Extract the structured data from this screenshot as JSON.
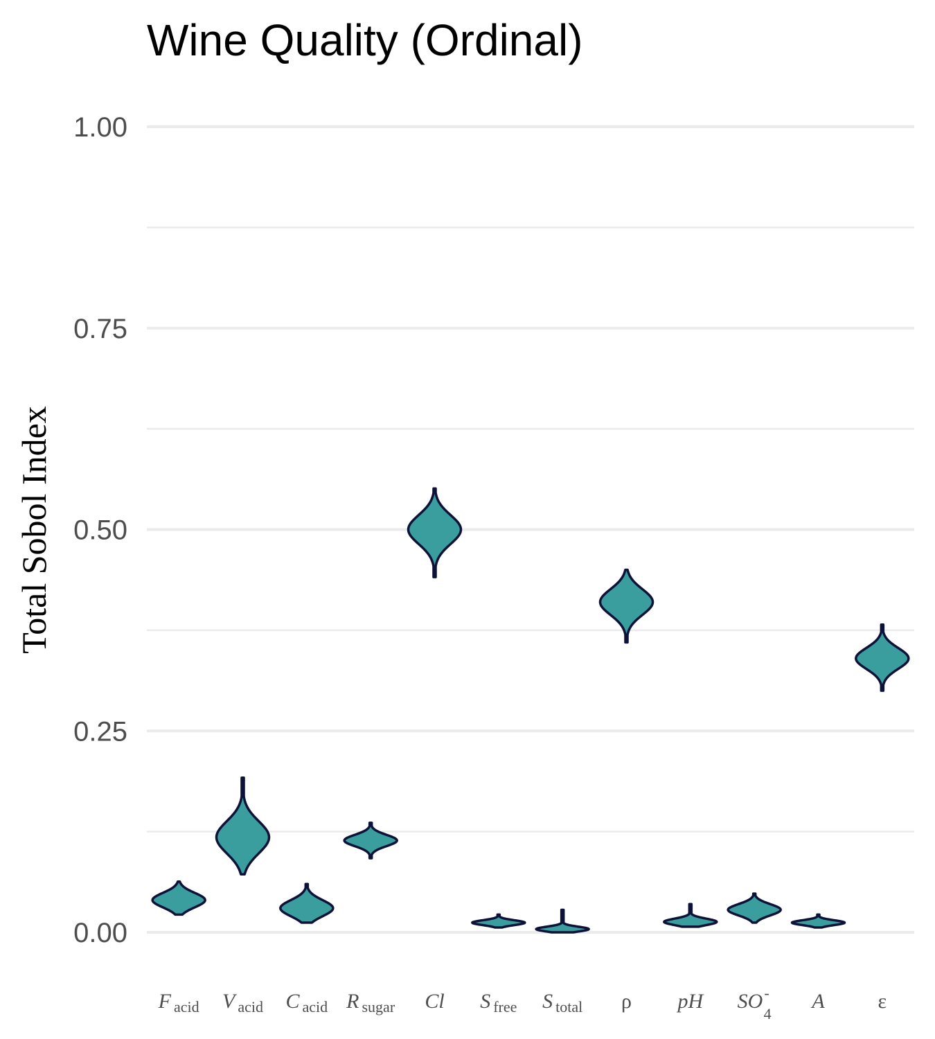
{
  "chart_data": {
    "type": "violin",
    "title": "Wine Quality (Ordinal)",
    "xlabel": "",
    "ylabel": "Total Sobol Index",
    "ylim": [
      -0.05,
      1.05
    ],
    "yticks": [
      {
        "value": 0.0,
        "label": "0.00"
      },
      {
        "value": 0.25,
        "label": "0.25"
      },
      {
        "value": 0.5,
        "label": "0.50"
      },
      {
        "value": 0.75,
        "label": "0.75"
      },
      {
        "value": 1.0,
        "label": "1.00"
      }
    ],
    "grid": true,
    "fill_color": "#3a9e9e",
    "outline_color": "#0d1238",
    "categories": [
      {
        "base": "F",
        "sub": "acid",
        "supsub": "",
        "italic": true,
        "median": 0.04,
        "min": 0.022,
        "max": 0.063,
        "spread": 0.009
      },
      {
        "base": "V",
        "sub": "acid",
        "supsub": "",
        "italic": true,
        "median": 0.118,
        "min": 0.072,
        "max": 0.192,
        "spread": 0.02
      },
      {
        "base": "C",
        "sub": "acid",
        "supsub": "",
        "italic": true,
        "median": 0.03,
        "min": 0.012,
        "max": 0.06,
        "spread": 0.01
      },
      {
        "base": "R",
        "sub": "sugar",
        "supsub": "",
        "italic": true,
        "median": 0.114,
        "min": 0.092,
        "max": 0.136,
        "spread": 0.007
      },
      {
        "base": "Cl",
        "sub": "",
        "supsub": "",
        "italic": true,
        "median": 0.5,
        "min": 0.441,
        "max": 0.551,
        "spread": 0.018
      },
      {
        "base": "S",
        "sub": "free",
        "supsub": "",
        "italic": true,
        "median": 0.012,
        "min": 0.006,
        "max": 0.022,
        "spread": 0.003
      },
      {
        "base": "S",
        "sub": "total",
        "supsub": "",
        "italic": true,
        "median": 0.004,
        "min": 0.0,
        "max": 0.028,
        "spread": 0.003
      },
      {
        "base": "ρ",
        "sub": "",
        "supsub": "",
        "italic": false,
        "median": 0.41,
        "min": 0.36,
        "max": 0.45,
        "spread": 0.016
      },
      {
        "base": "pH",
        "sub": "",
        "supsub": "",
        "italic": true,
        "median": 0.013,
        "min": 0.007,
        "max": 0.035,
        "spread": 0.004
      },
      {
        "base": "SO",
        "sub": "4",
        "supsub": "-",
        "italic": true,
        "median": 0.028,
        "min": 0.012,
        "max": 0.048,
        "spread": 0.007
      },
      {
        "base": "A",
        "sub": "",
        "supsub": "",
        "italic": true,
        "median": 0.012,
        "min": 0.006,
        "max": 0.022,
        "spread": 0.003
      },
      {
        "base": "ε",
        "sub": "",
        "supsub": "",
        "italic": false,
        "median": 0.34,
        "min": 0.3,
        "max": 0.382,
        "spread": 0.013
      }
    ]
  }
}
